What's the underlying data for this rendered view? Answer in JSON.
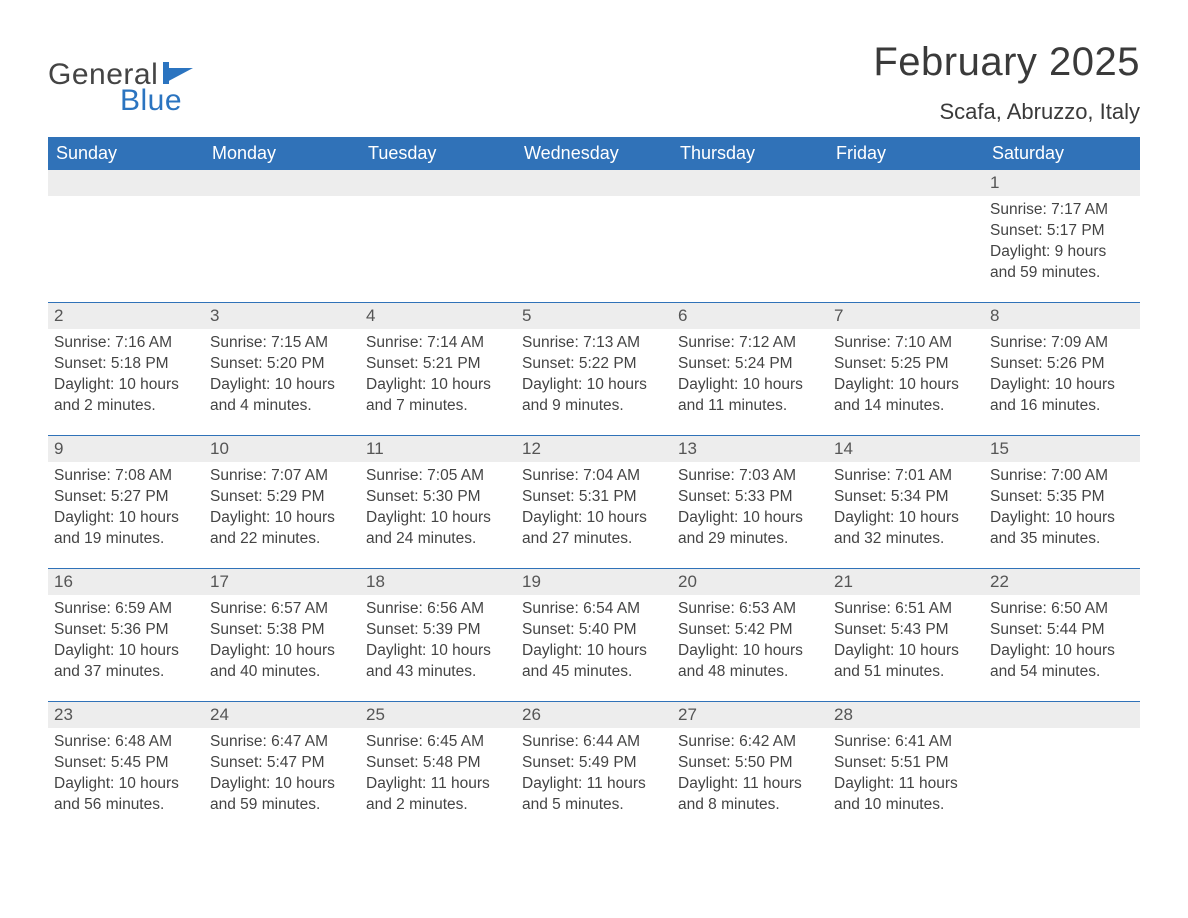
{
  "logo": {
    "line1": "General",
    "line2": "Blue"
  },
  "title": "February 2025",
  "location": "Scafa, Abruzzo, Italy",
  "colors": {
    "header_bg": "#3072b8",
    "header_text": "#ffffff",
    "daybar_bg": "#ededed",
    "daybar_border": "#3072b8",
    "body_bg": "#ffffff",
    "text": "#444444",
    "logo_accent": "#2b74c0"
  },
  "typography": {
    "title_fontsize": 40,
    "location_fontsize": 22,
    "weekday_fontsize": 18,
    "daynum_fontsize": 17,
    "body_fontsize": 15.5,
    "font_family": "Arial"
  },
  "weekdays": [
    "Sunday",
    "Monday",
    "Tuesday",
    "Wednesday",
    "Thursday",
    "Friday",
    "Saturday"
  ],
  "weeks": [
    [
      null,
      null,
      null,
      null,
      null,
      null,
      {
        "n": "1",
        "sunrise": "7:17 AM",
        "sunset": "5:17 PM",
        "daylight": "9 hours and 59 minutes."
      }
    ],
    [
      {
        "n": "2",
        "sunrise": "7:16 AM",
        "sunset": "5:18 PM",
        "daylight": "10 hours and 2 minutes."
      },
      {
        "n": "3",
        "sunrise": "7:15 AM",
        "sunset": "5:20 PM",
        "daylight": "10 hours and 4 minutes."
      },
      {
        "n": "4",
        "sunrise": "7:14 AM",
        "sunset": "5:21 PM",
        "daylight": "10 hours and 7 minutes."
      },
      {
        "n": "5",
        "sunrise": "7:13 AM",
        "sunset": "5:22 PM",
        "daylight": "10 hours and 9 minutes."
      },
      {
        "n": "6",
        "sunrise": "7:12 AM",
        "sunset": "5:24 PM",
        "daylight": "10 hours and 11 minutes."
      },
      {
        "n": "7",
        "sunrise": "7:10 AM",
        "sunset": "5:25 PM",
        "daylight": "10 hours and 14 minutes."
      },
      {
        "n": "8",
        "sunrise": "7:09 AM",
        "sunset": "5:26 PM",
        "daylight": "10 hours and 16 minutes."
      }
    ],
    [
      {
        "n": "9",
        "sunrise": "7:08 AM",
        "sunset": "5:27 PM",
        "daylight": "10 hours and 19 minutes."
      },
      {
        "n": "10",
        "sunrise": "7:07 AM",
        "sunset": "5:29 PM",
        "daylight": "10 hours and 22 minutes."
      },
      {
        "n": "11",
        "sunrise": "7:05 AM",
        "sunset": "5:30 PM",
        "daylight": "10 hours and 24 minutes."
      },
      {
        "n": "12",
        "sunrise": "7:04 AM",
        "sunset": "5:31 PM",
        "daylight": "10 hours and 27 minutes."
      },
      {
        "n": "13",
        "sunrise": "7:03 AM",
        "sunset": "5:33 PM",
        "daylight": "10 hours and 29 minutes."
      },
      {
        "n": "14",
        "sunrise": "7:01 AM",
        "sunset": "5:34 PM",
        "daylight": "10 hours and 32 minutes."
      },
      {
        "n": "15",
        "sunrise": "7:00 AM",
        "sunset": "5:35 PM",
        "daylight": "10 hours and 35 minutes."
      }
    ],
    [
      {
        "n": "16",
        "sunrise": "6:59 AM",
        "sunset": "5:36 PM",
        "daylight": "10 hours and 37 minutes."
      },
      {
        "n": "17",
        "sunrise": "6:57 AM",
        "sunset": "5:38 PM",
        "daylight": "10 hours and 40 minutes."
      },
      {
        "n": "18",
        "sunrise": "6:56 AM",
        "sunset": "5:39 PM",
        "daylight": "10 hours and 43 minutes."
      },
      {
        "n": "19",
        "sunrise": "6:54 AM",
        "sunset": "5:40 PM",
        "daylight": "10 hours and 45 minutes."
      },
      {
        "n": "20",
        "sunrise": "6:53 AM",
        "sunset": "5:42 PM",
        "daylight": "10 hours and 48 minutes."
      },
      {
        "n": "21",
        "sunrise": "6:51 AM",
        "sunset": "5:43 PM",
        "daylight": "10 hours and 51 minutes."
      },
      {
        "n": "22",
        "sunrise": "6:50 AM",
        "sunset": "5:44 PM",
        "daylight": "10 hours and 54 minutes."
      }
    ],
    [
      {
        "n": "23",
        "sunrise": "6:48 AM",
        "sunset": "5:45 PM",
        "daylight": "10 hours and 56 minutes."
      },
      {
        "n": "24",
        "sunrise": "6:47 AM",
        "sunset": "5:47 PM",
        "daylight": "10 hours and 59 minutes."
      },
      {
        "n": "25",
        "sunrise": "6:45 AM",
        "sunset": "5:48 PM",
        "daylight": "11 hours and 2 minutes."
      },
      {
        "n": "26",
        "sunrise": "6:44 AM",
        "sunset": "5:49 PM",
        "daylight": "11 hours and 5 minutes."
      },
      {
        "n": "27",
        "sunrise": "6:42 AM",
        "sunset": "5:50 PM",
        "daylight": "11 hours and 8 minutes."
      },
      {
        "n": "28",
        "sunrise": "6:41 AM",
        "sunset": "5:51 PM",
        "daylight": "11 hours and 10 minutes."
      },
      null
    ]
  ],
  "labels": {
    "sunrise": "Sunrise: ",
    "sunset": "Sunset: ",
    "daylight": "Daylight: "
  }
}
